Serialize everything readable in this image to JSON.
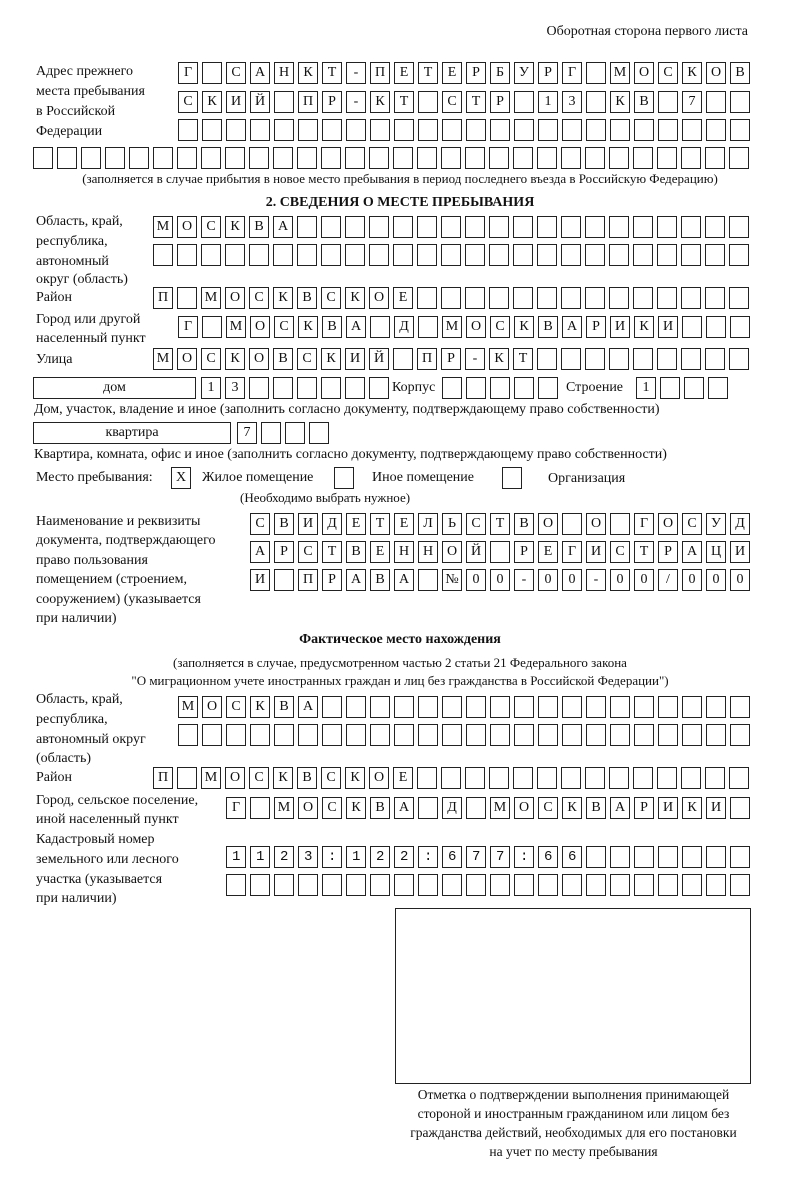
{
  "header": "Оборотная сторона первого листа",
  "previous_address": {
    "label": [
      "Адрес прежнего",
      "места пребывания",
      "в Российской",
      "Федерации"
    ],
    "rows": [
      "Г САНКТ-ПЕТЕРБУРГ МОСКОВ",
      "СКИЙ ПР-КТ СТР 13 КВ 7",
      "",
      ""
    ],
    "note": "(заполняется в случае прибытия в новое место пребывания в период последнего въезда в Российскую Федерацию)"
  },
  "section2": {
    "title": "2. СВЕДЕНИЯ О МЕСТЕ ПРЕБЫВАНИЯ",
    "region_label": [
      "Область, край,",
      "республика,",
      "автономный",
      "округ (область)"
    ],
    "region_rows": [
      "МОСКВА",
      ""
    ],
    "district_label": "Район",
    "district": "П МОСКВСКОЕ",
    "city_label": [
      "Город или другой",
      "населенный пункт"
    ],
    "city": "Г МОСКВА Д МОСКВАРИКИ",
    "street_label": "Улица",
    "street": "МОСКОВСКИЙ ПР-КТ",
    "house_type": "дом",
    "house_number": "13",
    "korpus_label": "Корпус",
    "korpus": "",
    "building_label": "Строение",
    "building": "1",
    "house_note": "Дом, участок, владение и иное (заполнить согласно документу, подтверждающему право собственности)",
    "apartment_type": "квартира",
    "apartment_number": "7",
    "apartment_note": "Квартира, комната, офис и иное (заполнить согласно документу, подтверждающему право собственности)",
    "stay_place_label": "Место пребывания:",
    "stay_options": [
      {
        "label": "Жилое помещение",
        "mark": "X",
        "checked": true
      },
      {
        "label": "Иное помещение",
        "mark": "",
        "checked": false
      },
      {
        "label": "Организация",
        "mark": "",
        "checked": false
      }
    ],
    "stay_note": "(Необходимо выбрать нужное)",
    "document_label": [
      "Наименование и реквизиты",
      "документа, подтверждающего",
      "право пользования",
      "помещением (строением,",
      "сооружением) (указывается",
      "при наличии)"
    ],
    "document_rows": [
      "СВИДЕТЕЛЬСТВО О ГОСУД",
      "АРСТВЕННОЙ РЕГИСТРАЦИ",
      "И ПРАВА №00-00-00/000"
    ]
  },
  "actual": {
    "title": "Фактическое место нахождения",
    "note": [
      "(заполняется в случае, предусмотренном частью 2 статьи 21 Федерального закона",
      "\"О миграционном учете иностранных граждан и лиц без гражданства в Российской Федерации\")"
    ],
    "region_label": [
      "Область, край,",
      "республика,",
      "автономный округ",
      "(область)"
    ],
    "region_rows": [
      "МОСКВА",
      ""
    ],
    "district_label": "Район",
    "district": "П МОСКВСКОЕ",
    "city_label": [
      "Город, сельское поселение,",
      "иной населенный пункт"
    ],
    "city": "Г МОСКВА Д МОСКВАРИКИ",
    "cadastre_label": [
      "Кадастровый номер",
      "земельного или лесного",
      "участка (указывается",
      "при наличии)"
    ],
    "cadastre_rows": [
      "1123:122:677:66",
      ""
    ]
  },
  "stamp_caption": [
    "Отметка о подтверждении выполнения принимающей",
    "стороной и иностранным гражданином или лицом без",
    "гражданства действий, необходимых для его постановки",
    "на учет по месту пребывания"
  ]
}
